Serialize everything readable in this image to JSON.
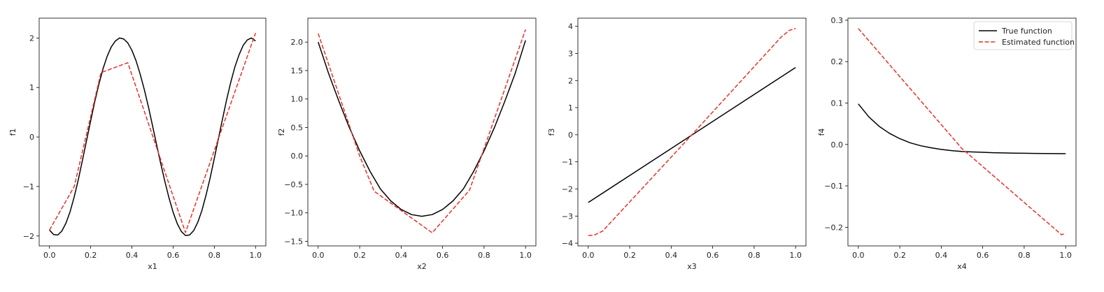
{
  "chart_data": [
    {
      "type": "line",
      "xlabel": "x1",
      "ylabel": "f1",
      "xlim": [
        -0.05,
        1.05
      ],
      "ylim": [
        -2.2,
        2.4
      ],
      "xticks": [
        0.0,
        0.2,
        0.4,
        0.6,
        0.8,
        1.0
      ],
      "xtick_labels": [
        "0.0",
        "0.2",
        "0.4",
        "0.6",
        "0.8",
        "1.0"
      ],
      "yticks": [
        -2,
        -1,
        0,
        1,
        2
      ],
      "ytick_labels": [
        "−2",
        "−1",
        "0",
        "1",
        "2"
      ],
      "series": [
        {
          "name": "True function",
          "color": "#000000",
          "dash": "solid",
          "x": [
            0.0,
            0.02,
            0.04,
            0.06,
            0.08,
            0.1,
            0.12,
            0.14,
            0.16,
            0.18,
            0.2,
            0.22,
            0.24,
            0.26,
            0.28,
            0.3,
            0.32,
            0.34,
            0.36,
            0.38,
            0.4,
            0.42,
            0.44,
            0.46,
            0.48,
            0.5,
            0.52,
            0.54,
            0.56,
            0.58,
            0.6,
            0.62,
            0.64,
            0.66,
            0.68,
            0.7,
            0.72,
            0.74,
            0.76,
            0.78,
            0.8,
            0.82,
            0.84,
            0.86,
            0.88,
            0.9,
            0.92,
            0.94,
            0.96,
            0.98,
            1.0
          ],
          "y": [
            -1.88,
            -1.97,
            -1.98,
            -1.9,
            -1.74,
            -1.51,
            -1.21,
            -0.86,
            -0.47,
            -0.07,
            0.33,
            0.72,
            1.07,
            1.38,
            1.63,
            1.82,
            1.94,
            2.0,
            1.98,
            1.9,
            1.75,
            1.54,
            1.27,
            0.96,
            0.61,
            0.23,
            -0.16,
            -0.54,
            -0.9,
            -1.23,
            -1.52,
            -1.75,
            -1.91,
            -1.99,
            -1.98,
            -1.89,
            -1.72,
            -1.48,
            -1.17,
            -0.82,
            -0.43,
            -0.03,
            0.37,
            0.76,
            1.11,
            1.42,
            1.66,
            1.85,
            1.96,
            2.0,
            1.94
          ]
        },
        {
          "name": "Estimated function",
          "color": "#e8302a",
          "dash": "dashed",
          "x": [
            0.0,
            0.12,
            0.25,
            0.38,
            0.66,
            1.0
          ],
          "y": [
            -1.88,
            -1.0,
            1.3,
            1.5,
            -1.93,
            2.1
          ]
        }
      ]
    },
    {
      "type": "line",
      "xlabel": "x2",
      "ylabel": "f2",
      "xlim": [
        -0.05,
        1.05
      ],
      "ylim": [
        -1.58,
        2.42
      ],
      "xticks": [
        0.0,
        0.2,
        0.4,
        0.6,
        0.8,
        1.0
      ],
      "xtick_labels": [
        "0.0",
        "0.2",
        "0.4",
        "0.6",
        "0.8",
        "1.0"
      ],
      "yticks": [
        -1.5,
        -1.0,
        -0.5,
        0.0,
        0.5,
        1.0,
        1.5,
        2.0
      ],
      "ytick_labels": [
        "−1.5",
        "−1.0",
        "−0.5",
        "0.0",
        "0.5",
        "1.0",
        "1.5",
        "2.0"
      ],
      "series": [
        {
          "name": "True function",
          "color": "#000000",
          "dash": "solid",
          "x": [
            0.0,
            0.05,
            0.1,
            0.15,
            0.2,
            0.25,
            0.3,
            0.35,
            0.4,
            0.45,
            0.5,
            0.55,
            0.6,
            0.65,
            0.7,
            0.75,
            0.8,
            0.85,
            0.9,
            0.95,
            1.0
          ],
          "y": [
            2.0,
            1.45,
            0.96,
            0.5,
            0.09,
            -0.27,
            -0.58,
            -0.79,
            -0.94,
            -1.03,
            -1.06,
            -1.03,
            -0.94,
            -0.79,
            -0.58,
            -0.27,
            0.09,
            0.5,
            0.96,
            1.45,
            2.03
          ]
        },
        {
          "name": "Estimated function",
          "color": "#e8302a",
          "dash": "dashed",
          "x": [
            0.0,
            0.2,
            0.27,
            0.55,
            0.73,
            1.0
          ],
          "y": [
            2.15,
            0.0,
            -0.62,
            -1.35,
            -0.6,
            2.22
          ]
        }
      ]
    },
    {
      "type": "line",
      "xlabel": "x3",
      "ylabel": "f3",
      "xlim": [
        -0.05,
        1.05
      ],
      "ylim": [
        -4.1,
        4.3
      ],
      "xticks": [
        0.0,
        0.2,
        0.4,
        0.6,
        0.8,
        1.0
      ],
      "xtick_labels": [
        "0.0",
        "0.2",
        "0.4",
        "0.6",
        "0.8",
        "1.0"
      ],
      "yticks": [
        -4,
        -3,
        -2,
        -1,
        0,
        1,
        2,
        3,
        4
      ],
      "ytick_labels": [
        "−4",
        "−3",
        "−2",
        "−1",
        "0",
        "1",
        "2",
        "3",
        "4"
      ],
      "series": [
        {
          "name": "True function",
          "color": "#000000",
          "dash": "solid",
          "x": [
            0.0,
            1.0
          ],
          "y": [
            -2.5,
            2.48
          ]
        },
        {
          "name": "Estimated function",
          "color": "#e8302a",
          "dash": "dashed",
          "x": [
            0.0,
            0.03,
            0.07,
            0.5,
            0.93,
            0.97,
            1.0
          ],
          "y": [
            -3.72,
            -3.7,
            -3.55,
            0.0,
            3.6,
            3.85,
            3.92
          ]
        }
      ]
    },
    {
      "type": "line",
      "xlabel": "x4",
      "ylabel": "f4",
      "xlim": [
        -0.05,
        1.05
      ],
      "ylim": [
        -0.245,
        0.305
      ],
      "xticks": [
        0.0,
        0.2,
        0.4,
        0.6,
        0.8,
        1.0
      ],
      "xtick_labels": [
        "0.0",
        "0.2",
        "0.4",
        "0.6",
        "0.8",
        "1.0"
      ],
      "yticks": [
        -0.2,
        -0.1,
        0.0,
        0.1,
        0.2,
        0.3
      ],
      "ytick_labels": [
        "−0.2",
        "−0.1",
        "0.0",
        "0.1",
        "0.2",
        "0.3"
      ],
      "legend": {
        "placement": "top-right",
        "entries": [
          {
            "label": "True function",
            "color": "#000000",
            "dash": "solid"
          },
          {
            "label": "Estimated function",
            "color": "#e8302a",
            "dash": "dashed"
          }
        ]
      },
      "series": [
        {
          "name": "True function",
          "color": "#000000",
          "dash": "solid",
          "x": [
            0.0,
            0.05,
            0.1,
            0.15,
            0.2,
            0.25,
            0.3,
            0.35,
            0.4,
            0.45,
            0.5,
            0.55,
            0.6,
            0.65,
            0.7,
            0.75,
            0.8,
            0.85,
            0.9,
            0.95,
            1.0
          ],
          "y": [
            0.098,
            0.067,
            0.044,
            0.027,
            0.014,
            0.004,
            -0.003,
            -0.008,
            -0.012,
            -0.015,
            -0.017,
            -0.018,
            -0.019,
            -0.02,
            -0.0205,
            -0.021,
            -0.0213,
            -0.0216,
            -0.0218,
            -0.022,
            -0.0222
          ]
        },
        {
          "name": "Estimated function",
          "color": "#e8302a",
          "dash": "dashed",
          "x": [
            0.0,
            0.5,
            0.98,
            1.0
          ],
          "y": [
            0.28,
            -0.01,
            -0.218,
            -0.215
          ]
        }
      ]
    }
  ]
}
